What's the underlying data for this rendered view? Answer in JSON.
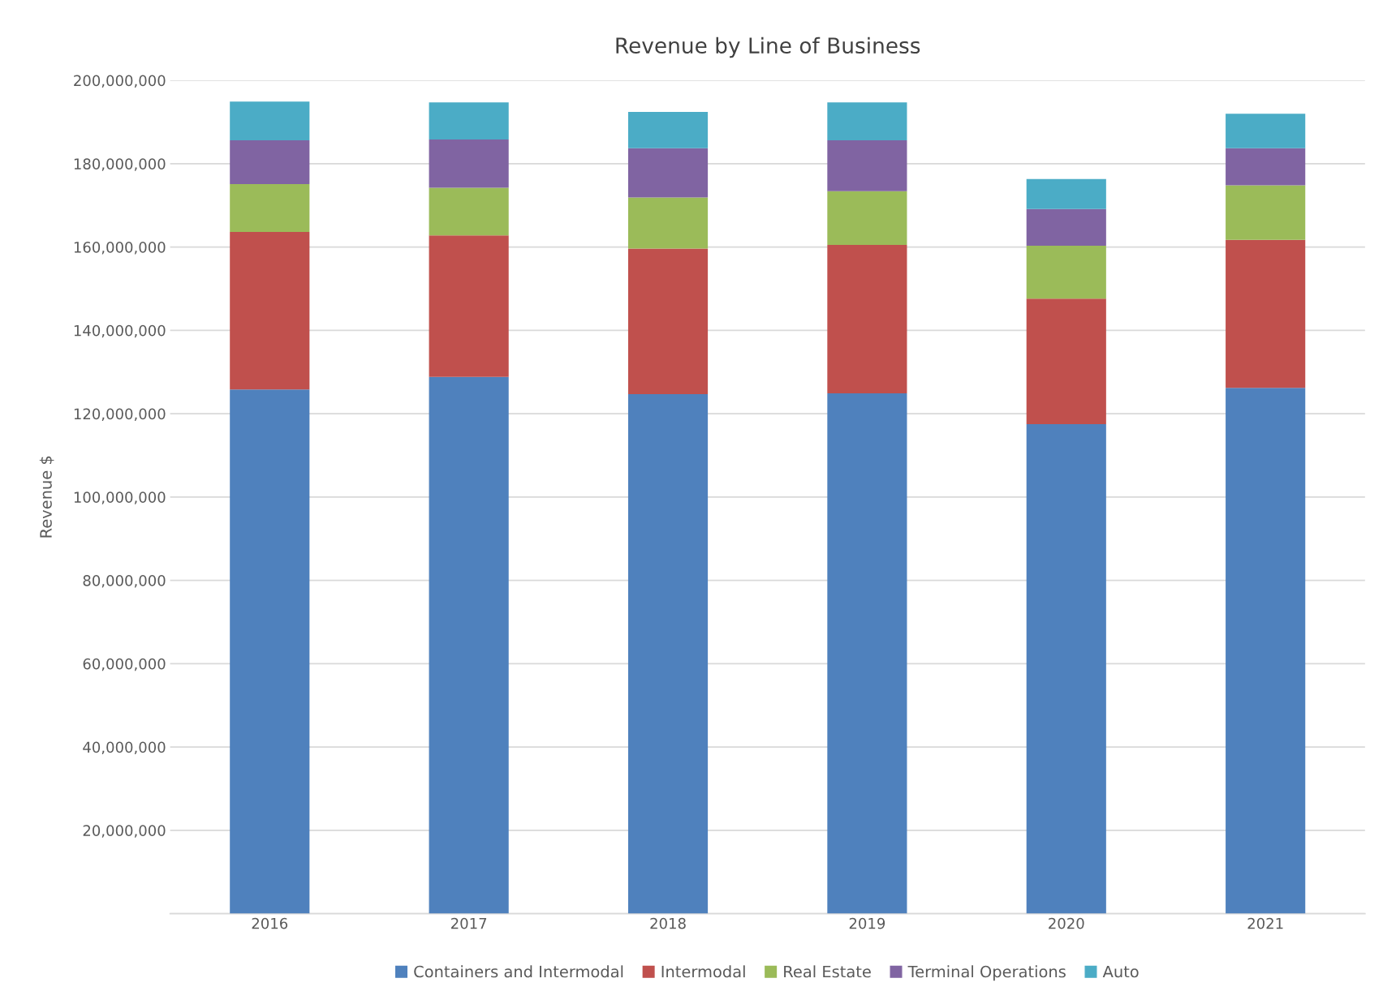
{
  "chart_data": {
    "type": "bar",
    "title": "Revenue by Line of Business",
    "ylabel": "Revenue $",
    "categories": [
      "2016",
      "2017",
      "2018",
      "2019",
      "2020",
      "2021"
    ],
    "stacked": true,
    "series": [
      {
        "name": "Containers and Intermodal",
        "color": "#4f81bd",
        "values": [
          125800000,
          128800000,
          124700000,
          124900000,
          117500000,
          126200000
        ]
      },
      {
        "name": "Intermodal",
        "color": "#c0504d",
        "values": [
          37800000,
          34000000,
          34900000,
          35600000,
          30100000,
          35500000
        ]
      },
      {
        "name": "Real Estate",
        "color": "#9bbb59",
        "values": [
          11500000,
          11400000,
          12300000,
          12900000,
          12700000,
          13100000
        ]
      },
      {
        "name": "Terminal Operations",
        "color": "#8064a2",
        "values": [
          10500000,
          11600000,
          11800000,
          12200000,
          8800000,
          8900000
        ]
      },
      {
        "name": "Auto",
        "color": "#4bacc6",
        "values": [
          9300000,
          8900000,
          8700000,
          9100000,
          7200000,
          8300000
        ]
      }
    ],
    "ylim": [
      0,
      200000000
    ],
    "yticks": [
      {
        "value": 0,
        "label": null
      },
      {
        "value": 20000000,
        "label": "20,000,000"
      },
      {
        "value": 40000000,
        "label": "40,000,000"
      },
      {
        "value": 60000000,
        "label": "60,000,000"
      },
      {
        "value": 80000000,
        "label": "80,000,000"
      },
      {
        "value": 100000000,
        "label": "100,000,000"
      },
      {
        "value": 120000000,
        "label": "120,000,000"
      },
      {
        "value": 140000000,
        "label": "140,000,000"
      },
      {
        "value": 160000000,
        "label": "160,000,000"
      },
      {
        "value": 180000000,
        "label": "180,000,000"
      },
      {
        "value": 200000000,
        "label": "200,000,000"
      }
    ],
    "grid": "y",
    "legend": "bottom"
  }
}
